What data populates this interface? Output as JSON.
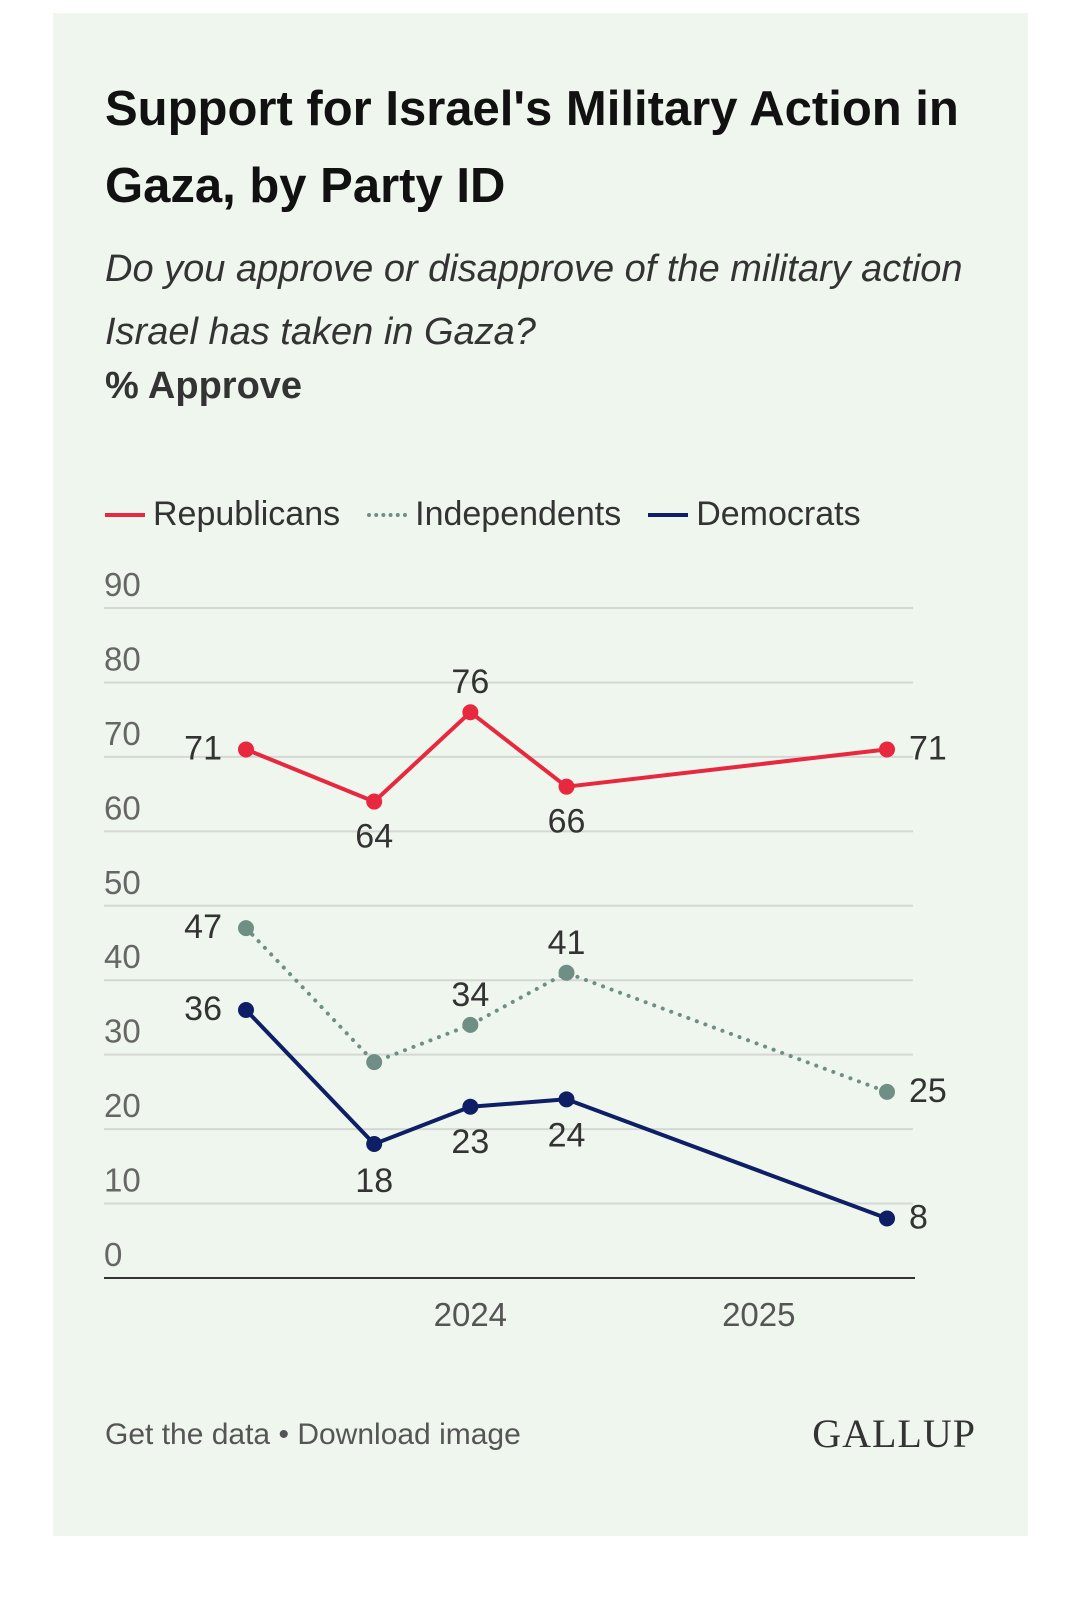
{
  "header": {
    "title": "Support for Israel's Military Action in Gaza, by Party ID",
    "subtitle": "Do you approve or disapprove of the military action Israel has taken in Gaza?",
    "unit_label": "% Approve"
  },
  "footer": {
    "get_data": "Get the data",
    "separator": "•",
    "download": "Download image",
    "logo": "GALLUP"
  },
  "chart_data": {
    "type": "line",
    "title": "Support for Israel's Military Action in Gaza, by Party ID",
    "subtitle": "Do you approve or disapprove of the military action Israel has taken in Gaza?",
    "ylabel": "% Approve",
    "xlabel": "",
    "ylim": [
      0,
      90
    ],
    "yticks": [
      0,
      10,
      20,
      30,
      40,
      50,
      60,
      70,
      80,
      90
    ],
    "xtick_labels": [
      "2024",
      "2025"
    ],
    "x": [
      "2023-11",
      "2024-03",
      "2024-06",
      "2024-09",
      "2025-07"
    ],
    "grid": true,
    "legend_position": "top-left",
    "series": [
      {
        "name": "Republicans",
        "color": "#e8283e",
        "style": "solid",
        "values": [
          71,
          64,
          76,
          66,
          71
        ]
      },
      {
        "name": "Independents",
        "color": "#6f8f86",
        "style": "dotted",
        "values": [
          47,
          29,
          34,
          41,
          25
        ]
      },
      {
        "name": "Democrats",
        "color": "#0f1f66",
        "style": "solid",
        "values": [
          36,
          18,
          23,
          24,
          8
        ]
      }
    ],
    "data_labels": {
      "Republicans": [
        "71",
        "64",
        "76",
        "66",
        "71"
      ],
      "Independents": [
        "47",
        "",
        "34",
        "41",
        "25"
      ],
      "Democrats": [
        "36",
        "18",
        "23",
        "24",
        "8"
      ]
    }
  }
}
